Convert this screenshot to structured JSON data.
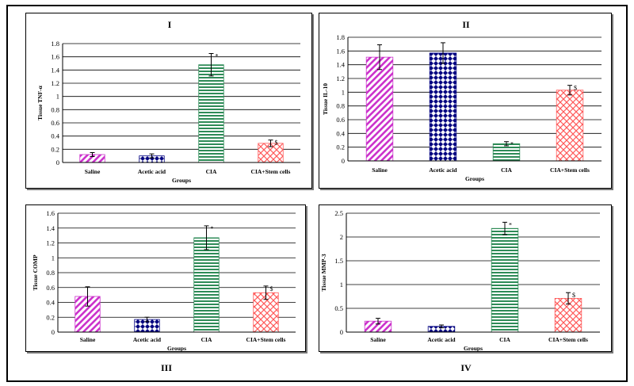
{
  "colors": {
    "saline": "#cc33cc",
    "acetic_acid": "#000080",
    "cia": "#2e8b57",
    "cia_stem": "#ff5a5a"
  },
  "chart_data": [
    {
      "roman": "I",
      "type": "bar",
      "ylabel": "Tissue TNF-α",
      "xlabel": "Groups",
      "categories": [
        "Saline",
        "Acetic acid",
        "CIA",
        "CIA+Stem cells"
      ],
      "values": [
        0.12,
        0.1,
        1.48,
        0.29
      ],
      "errors": [
        0.03,
        0.03,
        0.17,
        0.05
      ],
      "markers": [
        "",
        "",
        "*",
        "$"
      ],
      "ylim": [
        0,
        1.8
      ],
      "ticks": [
        "0",
        "0.2",
        "0.4",
        "0.6",
        "0.8",
        "1",
        "1.2",
        "1.4",
        "1.6",
        "1.8"
      ],
      "grid": true
    },
    {
      "roman": "II",
      "type": "bar",
      "ylabel": "Tissue IL-10",
      "xlabel": "Groups",
      "categories": [
        "Saline",
        "Acetic acid",
        "CIA",
        "CIA+Stem cells"
      ],
      "values": [
        1.51,
        1.57,
        0.25,
        1.03
      ],
      "errors": [
        0.18,
        0.15,
        0.03,
        0.07
      ],
      "markers": [
        "",
        "",
        "*",
        "$"
      ],
      "ylim": [
        0,
        1.8
      ],
      "ticks": [
        "0",
        "0.2",
        "0.4",
        "0.6",
        "0.8",
        "1",
        "1.2",
        "1.4",
        "1.6",
        "1.8"
      ],
      "grid": true
    },
    {
      "roman": "III",
      "type": "bar",
      "ylabel": "Tissue COMP",
      "xlabel": "Groups",
      "categories": [
        "Saline",
        "Acetic acid",
        "CIA",
        "CIA+Stem cells"
      ],
      "values": [
        0.48,
        0.17,
        1.27,
        0.53
      ],
      "errors": [
        0.13,
        0.03,
        0.16,
        0.09
      ],
      "markers": [
        "",
        "",
        "*",
        "$"
      ],
      "ylim": [
        0,
        1.6
      ],
      "ticks": [
        "0",
        "0.2",
        "0.4",
        "0.6",
        "0.8",
        "1",
        "1.2",
        "1.4",
        "1.6"
      ],
      "grid": true
    },
    {
      "roman": "IV",
      "type": "bar",
      "ylabel": "Tissue MMP-3",
      "xlabel": "Groups",
      "categories": [
        "Saline",
        "Acetic acid",
        "CIA",
        "CIA+Stem cells"
      ],
      "values": [
        0.23,
        0.12,
        2.18,
        0.71
      ],
      "errors": [
        0.06,
        0.03,
        0.13,
        0.12
      ],
      "markers": [
        "",
        "",
        "*",
        "$"
      ],
      "ylim": [
        0,
        2.5
      ],
      "ticks": [
        "0",
        "0.5",
        "1",
        "1.5",
        "2",
        "2.5"
      ],
      "grid": true
    }
  ]
}
